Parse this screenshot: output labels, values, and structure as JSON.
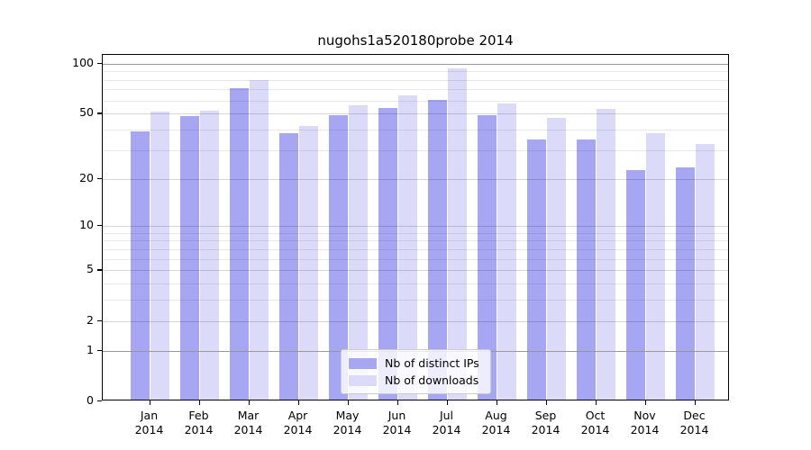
{
  "chart_data": {
    "type": "bar",
    "title": "nugohs1a520180probe 2014",
    "scale": "log1p",
    "ylim": [
      0,
      113
    ],
    "yticks": [
      100,
      50,
      20,
      10,
      5,
      2,
      1,
      0
    ],
    "minor_gridline_values": [
      3,
      4,
      6,
      7,
      8,
      9,
      30,
      40,
      60,
      70,
      80,
      90
    ],
    "emphasized_gridline_values": [
      1,
      100
    ],
    "grid": "on",
    "legend_position": "bottom-center",
    "categories": [
      "Jan",
      "Feb",
      "Mar",
      "Apr",
      "May",
      "Jun",
      "Jul",
      "Aug",
      "Sep",
      "Oct",
      "Nov",
      "Dec"
    ],
    "year_label": "2014",
    "series": [
      {
        "key": "distinct-ips",
        "name": "Nb of distinct IPs",
        "color": "#a6a6f2",
        "values": [
          38,
          47,
          70,
          37,
          48,
          53,
          59,
          48,
          34,
          34,
          22,
          23
        ]
      },
      {
        "key": "downloads",
        "name": "Nb of downloads",
        "color": "#dbdbf9",
        "values": [
          50,
          51,
          78,
          41,
          55,
          63,
          91,
          56,
          46,
          52,
          37,
          32
        ]
      }
    ]
  }
}
